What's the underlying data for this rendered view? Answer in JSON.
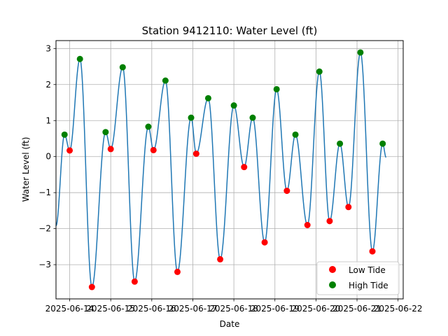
{
  "chart_data": {
    "type": "line",
    "title": "Station 9412110: Water Level (ft)",
    "xlabel": "Date",
    "ylabel": "Water Level (ft)",
    "x_ticks": [
      "2025-06-14",
      "2025-06-15",
      "2025-06-16",
      "2025-06-17",
      "2025-06-18",
      "2025-06-19",
      "2025-06-20",
      "2025-06-21",
      "2025-06-22"
    ],
    "y_ticks": [
      "−3",
      "−2",
      "−1",
      "0",
      "1",
      "2",
      "3"
    ],
    "xlim": [
      "2025-06-13 16:00",
      "2025-06-22 03:00"
    ],
    "ylim": [
      -3.95,
      3.22
    ],
    "grid": true,
    "legend_position": "lower-right",
    "line_color": "#1f77b4",
    "series": [
      {
        "name": "Low Tide",
        "color": "#ff0000",
        "points": [
          {
            "x": "2025-06-14 00:00",
            "y": 0.17
          },
          {
            "x": "2025-06-14 13:00",
            "y": -3.62
          },
          {
            "x": "2025-06-15 00:00",
            "y": 0.21
          },
          {
            "x": "2025-06-15 14:00",
            "y": -3.47
          },
          {
            "x": "2025-06-16 01:00",
            "y": 0.18
          },
          {
            "x": "2025-06-16 15:00",
            "y": -3.2
          },
          {
            "x": "2025-06-17 02:00",
            "y": 0.08
          },
          {
            "x": "2025-06-17 16:00",
            "y": -2.85
          },
          {
            "x": "2025-06-18 06:00",
            "y": -0.29
          },
          {
            "x": "2025-06-18 18:00",
            "y": -2.38
          },
          {
            "x": "2025-06-19 07:00",
            "y": -0.95
          },
          {
            "x": "2025-06-19 19:00",
            "y": -1.9
          },
          {
            "x": "2025-06-20 08:00",
            "y": -1.79
          },
          {
            "x": "2025-06-20 19:00",
            "y": -1.4
          },
          {
            "x": "2025-06-21 09:00",
            "y": -2.63
          }
        ]
      },
      {
        "name": "High Tide",
        "color": "#008000",
        "points": [
          {
            "x": "2025-06-13 21:00",
            "y": 0.61
          },
          {
            "x": "2025-06-14 06:00",
            "y": 2.71
          },
          {
            "x": "2025-06-14 21:00",
            "y": 0.68
          },
          {
            "x": "2025-06-15 07:00",
            "y": 2.48
          },
          {
            "x": "2025-06-15 22:00",
            "y": 0.83
          },
          {
            "x": "2025-06-16 08:00",
            "y": 2.11
          },
          {
            "x": "2025-06-16 23:00",
            "y": 1.08
          },
          {
            "x": "2025-06-17 09:00",
            "y": 1.62
          },
          {
            "x": "2025-06-18 00:00",
            "y": 1.42
          },
          {
            "x": "2025-06-18 11:00",
            "y": 1.08
          },
          {
            "x": "2025-06-19 01:00",
            "y": 1.87
          },
          {
            "x": "2025-06-19 12:00",
            "y": 0.61
          },
          {
            "x": "2025-06-20 02:00",
            "y": 2.36
          },
          {
            "x": "2025-06-20 14:00",
            "y": 0.36
          },
          {
            "x": "2025-06-21 02:00",
            "y": 2.89
          },
          {
            "x": "2025-06-21 15:00",
            "y": 0.36
          }
        ]
      }
    ],
    "curve_start": {
      "x": "2025-06-13 16:00",
      "y": -1.92
    },
    "curve_end": {
      "x": "2025-06-21 17:00",
      "y": -0.02
    }
  }
}
